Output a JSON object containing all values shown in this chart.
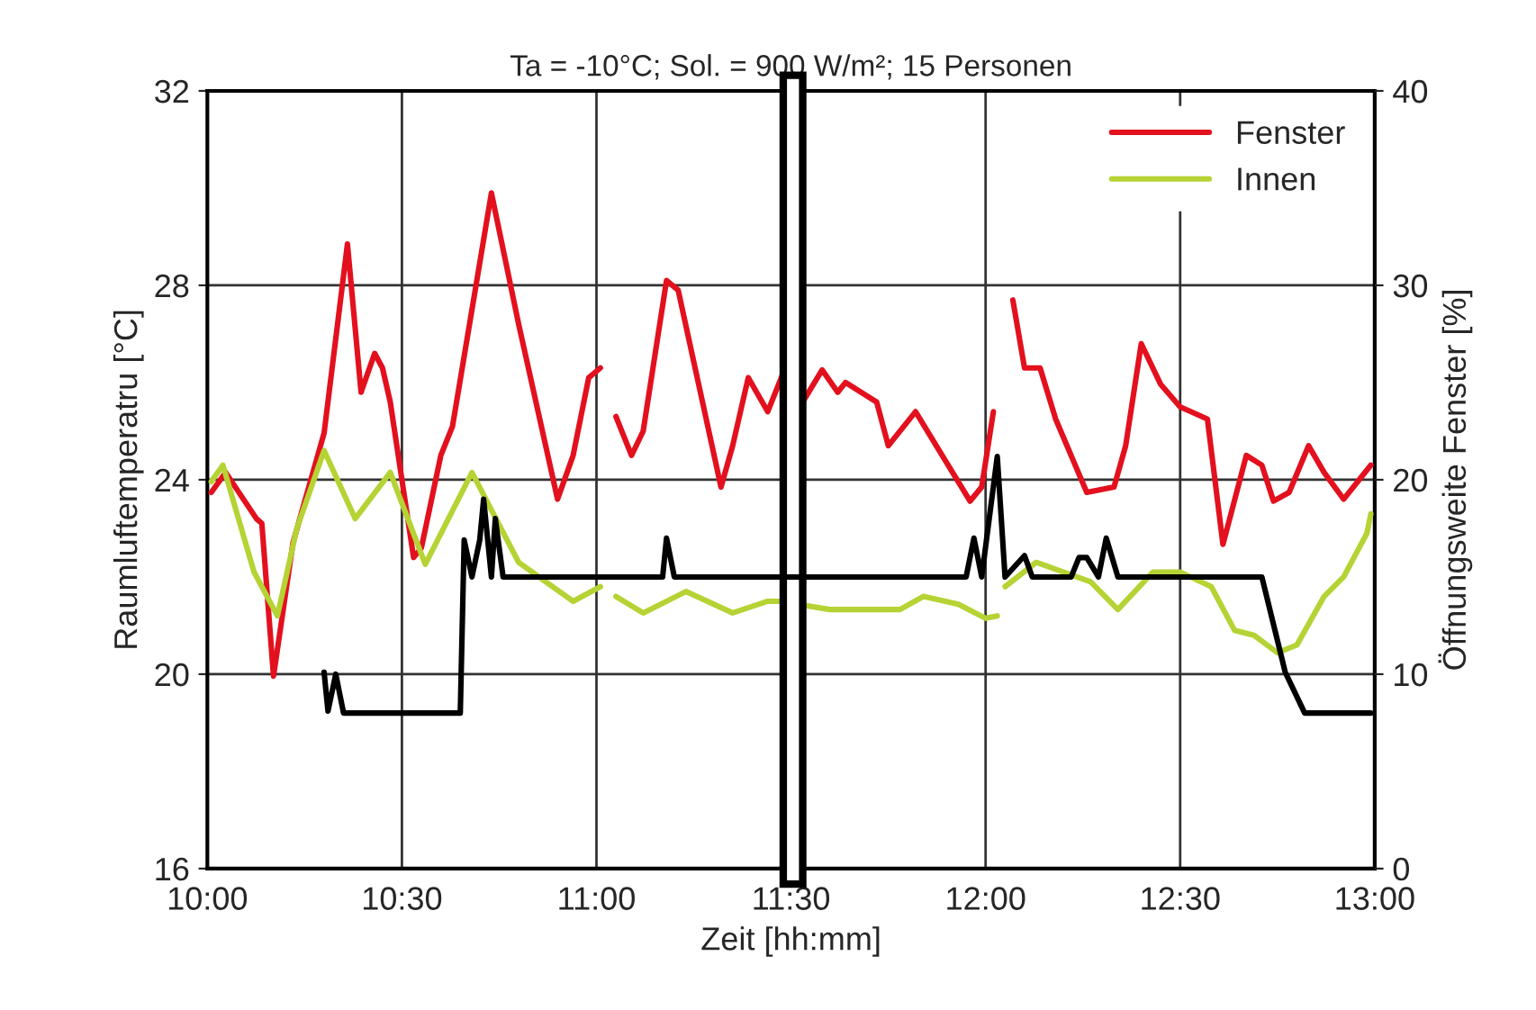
{
  "chart_data": {
    "type": "line",
    "title": "Ta = -10°C; Sol. = 900 W/m²; 15 Personen",
    "xlabel": "Zeit [hh:mm]",
    "ylabel": "Raumluftemperatru [°C]",
    "y2label": "Öffnungsweite Fenster [%]",
    "xlim": [
      10,
      13
    ],
    "xticks": [
      {
        "value": 10,
        "label": "10:00"
      },
      {
        "value": 10.5,
        "label": "10:30"
      },
      {
        "value": 11,
        "label": "11:00"
      },
      {
        "value": 11.5,
        "label": "11:30"
      },
      {
        "value": 12,
        "label": "12:00"
      },
      {
        "value": 12.5,
        "label": "12:30"
      },
      {
        "value": 13,
        "label": "13:00"
      }
    ],
    "ylim": [
      16,
      32
    ],
    "yticks": [
      16,
      20,
      24,
      28,
      32
    ],
    "y2lim": [
      0,
      40
    ],
    "y2ticks": [
      0,
      10,
      20,
      30,
      40
    ],
    "bands": [
      {
        "axis": "x",
        "from": 11.48,
        "to": 11.53,
        "color": "#ffffff"
      }
    ],
    "grid": true,
    "legend": "top right",
    "line_style": "solid",
    "series": [
      {
        "name": "Fenster",
        "color": "#e3101e",
        "x": [
          10.01,
          10.047,
          10.126,
          10.14,
          10.17,
          10.22,
          10.3,
          10.36,
          10.395,
          10.43,
          10.45,
          10.47,
          10.53,
          10.55,
          10.6,
          10.63,
          10.73,
          10.8,
          10.9,
          10.94,
          10.98,
          11.01,
          11.02,
          11.05,
          11.09,
          11.12,
          11.18,
          11.21,
          11.32,
          11.35,
          11.39,
          11.44,
          11.48,
          11.53,
          11.58,
          11.62,
          11.64,
          11.72,
          11.75,
          11.82,
          11.96,
          11.99,
          12.02,
          12.04,
          12.07,
          12.1,
          12.14,
          12.18,
          12.26,
          12.33,
          12.36,
          12.4,
          12.45,
          12.5,
          12.57,
          12.61,
          12.67,
          12.71,
          12.74,
          12.78,
          12.83,
          12.87,
          12.92,
          12.99
        ],
        "values": [
          23.74,
          24.15,
          23.2,
          23.1,
          19.96,
          22.7,
          24.96,
          28.85,
          25.8,
          26.6,
          26.3,
          25.6,
          22.4,
          22.6,
          24.5,
          25.1,
          29.9,
          27.2,
          23.6,
          24.5,
          26.1,
          26.3,
          null,
          25.3,
          24.5,
          25.0,
          28.1,
          27.9,
          23.85,
          24.7,
          26.1,
          25.4,
          26.2,
          25.6,
          26.26,
          25.8,
          26.0,
          25.6,
          24.7,
          25.4,
          23.56,
          23.85,
          25.4,
          null,
          27.7,
          26.3,
          26.3,
          25.25,
          23.74,
          23.85,
          24.7,
          26.8,
          25.96,
          25.5,
          25.25,
          22.67,
          24.5,
          24.3,
          23.56,
          23.74,
          24.7,
          24.15,
          23.6,
          24.3
        ]
      },
      {
        "name": "Innen",
        "color": "#b5d334",
        "x": [
          10.01,
          10.04,
          10.12,
          10.18,
          10.23,
          10.3,
          10.38,
          10.47,
          10.56,
          10.68,
          10.8,
          10.94,
          11.01,
          11.03,
          11.05,
          11.12,
          11.23,
          11.35,
          11.44,
          11.47,
          11.6,
          11.78,
          11.84,
          11.93,
          12.0,
          12.03,
          12.04,
          12.05,
          12.13,
          12.27,
          12.34,
          12.43,
          12.5,
          12.58,
          12.64,
          12.69,
          12.75,
          12.8,
          12.87,
          12.92,
          12.98,
          12.99
        ],
        "values": [
          23.96,
          24.3,
          22.1,
          21.2,
          23.0,
          24.6,
          23.2,
          24.15,
          22.26,
          24.15,
          22.3,
          21.5,
          21.8,
          null,
          21.6,
          21.26,
          21.7,
          21.26,
          21.5,
          21.5,
          21.33,
          21.33,
          21.6,
          21.44,
          21.15,
          21.2,
          null,
          21.8,
          22.3,
          21.9,
          21.33,
          22.1,
          22.1,
          21.8,
          20.9,
          20.8,
          20.44,
          20.6,
          21.6,
          22.0,
          22.9,
          23.3
        ]
      },
      {
        "color": "#000000",
        "axis": "y2",
        "x": [
          10.3,
          10.31,
          10.33,
          10.35,
          10.65,
          10.66,
          10.68,
          10.7,
          10.71,
          10.73,
          10.74,
          10.76,
          11.17,
          11.18,
          11.2,
          11.95,
          11.97,
          11.99,
          12.03,
          12.05,
          12.1,
          12.12,
          12.22,
          12.24,
          12.26,
          12.29,
          12.31,
          12.34,
          12.71,
          12.77,
          12.82,
          12.99
        ],
        "values": [
          10.1,
          8.1,
          10.0,
          8.0,
          8.0,
          16.9,
          15.0,
          16.9,
          19.0,
          15.0,
          18.0,
          15.0,
          15.0,
          17.0,
          15.0,
          15.0,
          17.0,
          15.0,
          21.2,
          15.0,
          16.1,
          15.0,
          15.0,
          16.0,
          16.0,
          15.0,
          17.0,
          15.0,
          15.0,
          10.1,
          8.0,
          8.0
        ]
      }
    ]
  }
}
